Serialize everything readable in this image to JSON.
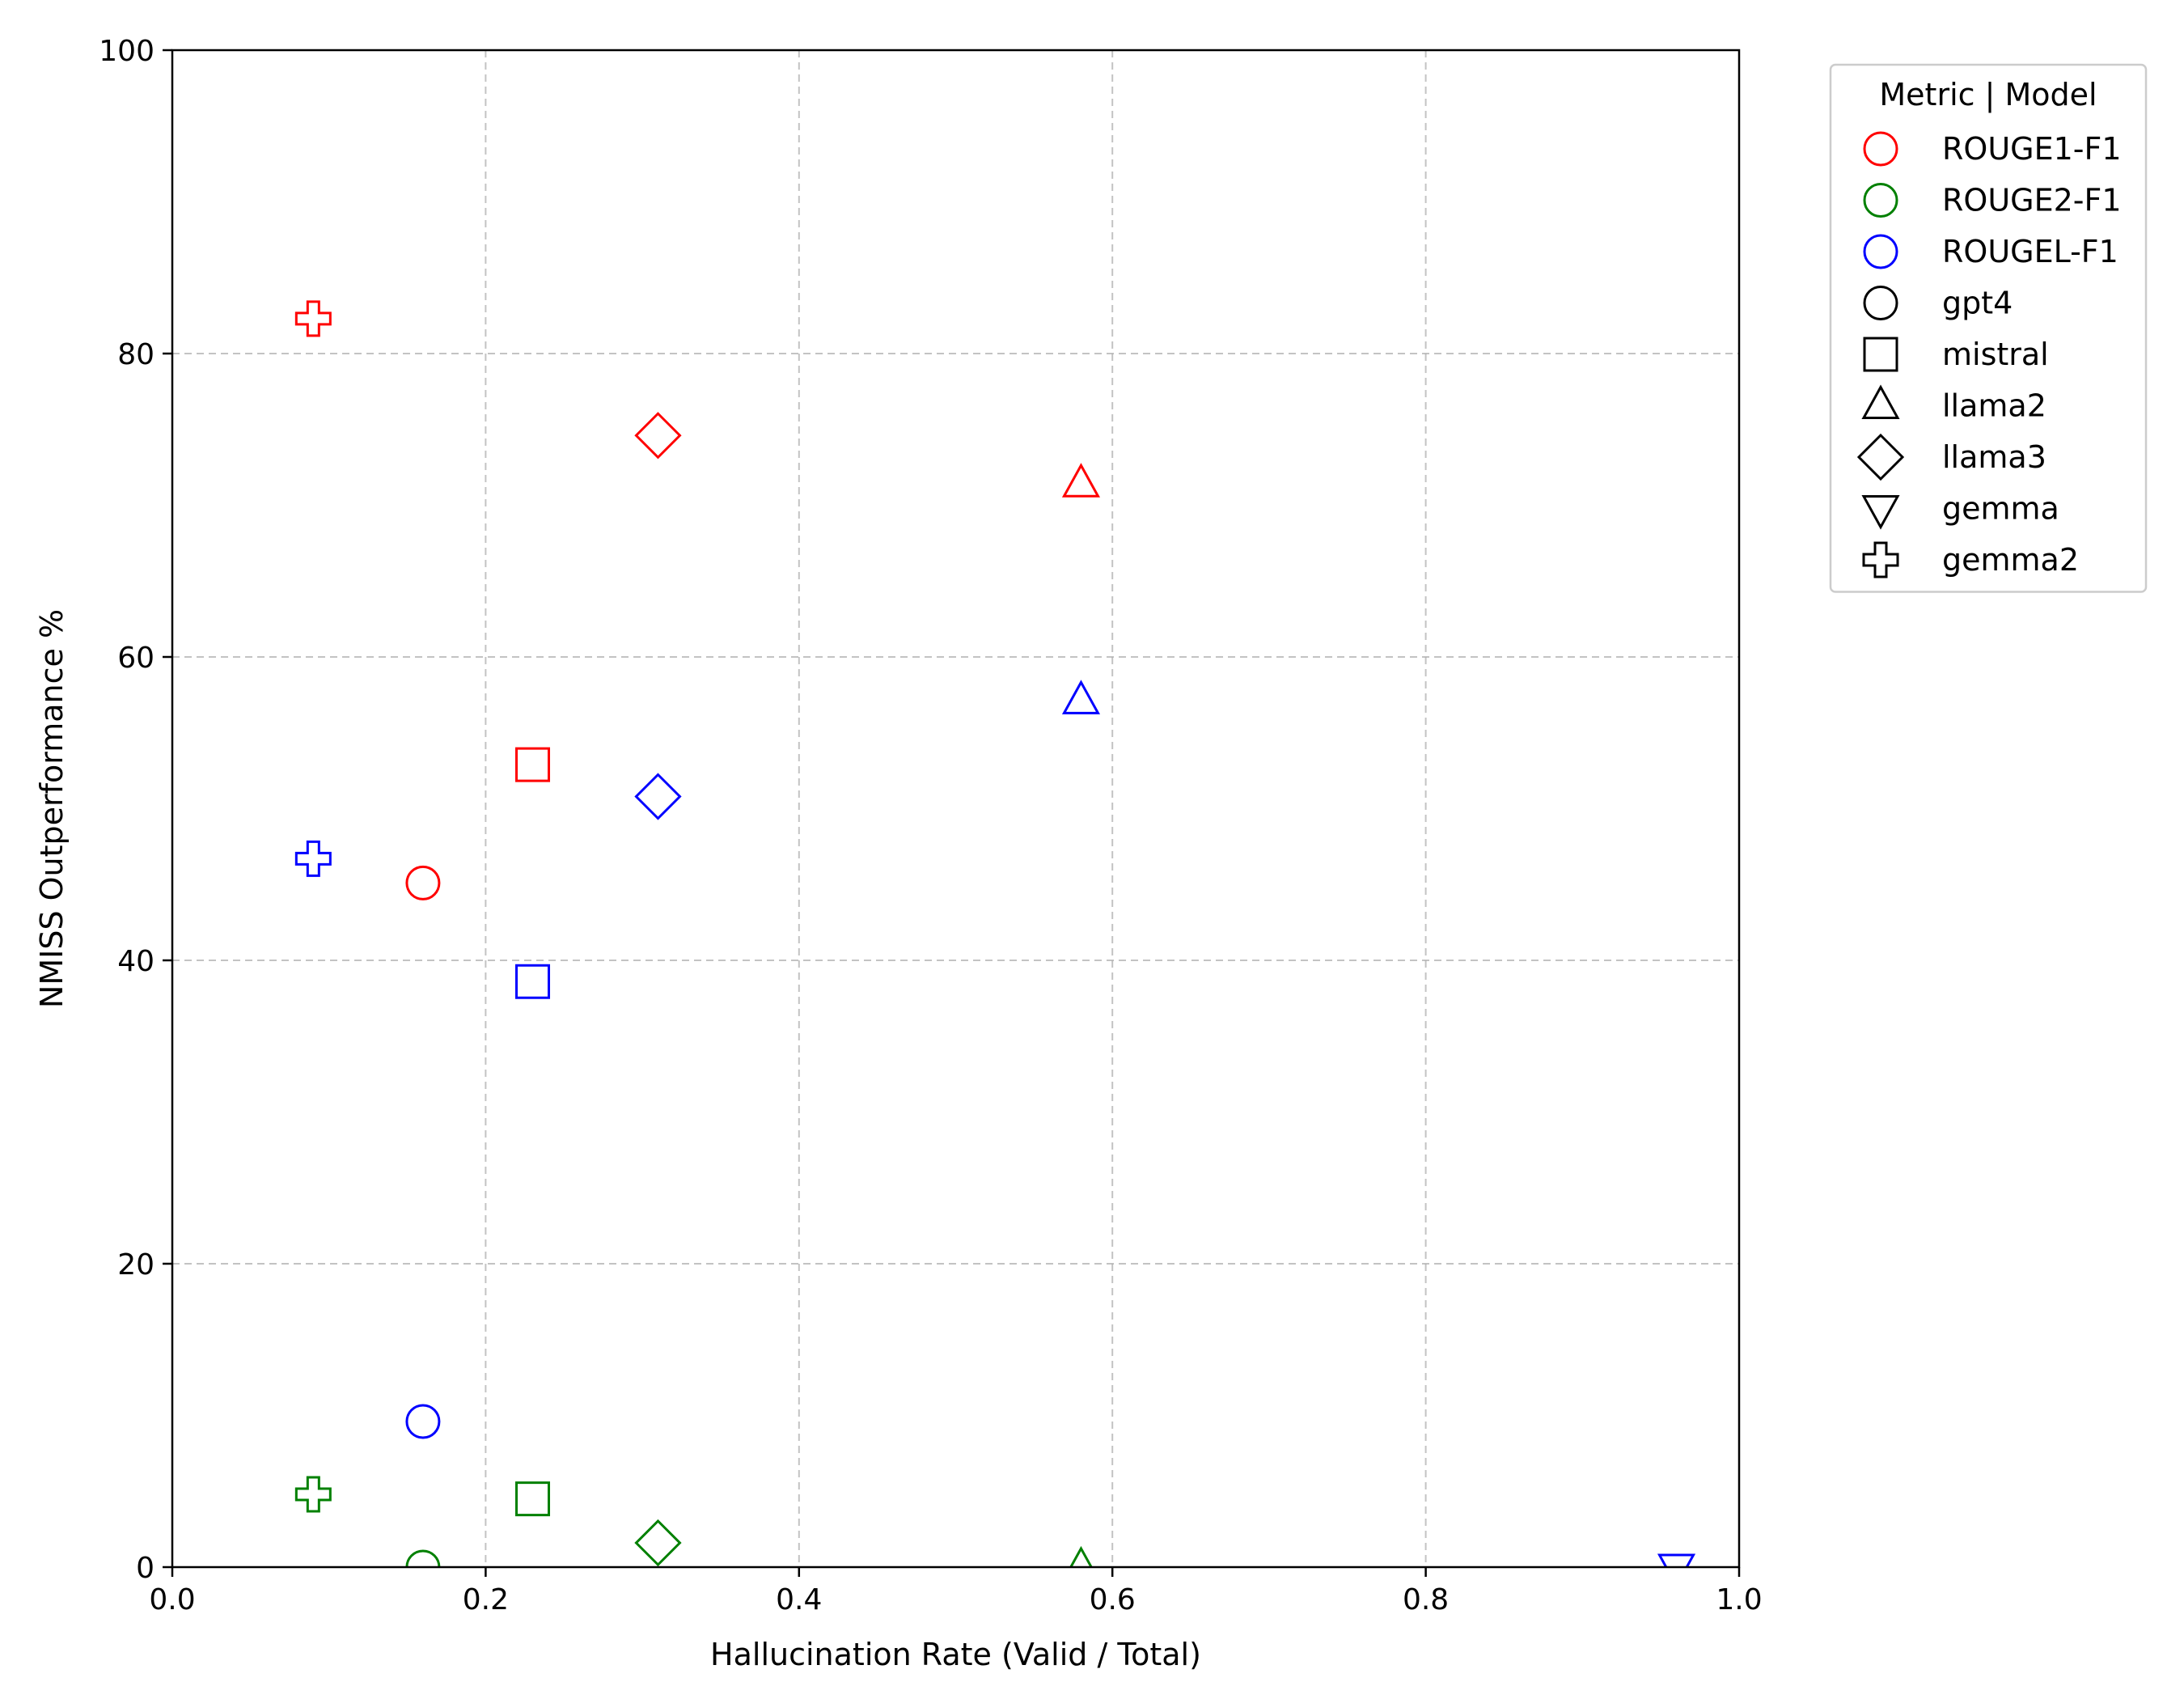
{
  "chart_data": {
    "type": "scatter",
    "title": "",
    "xlabel": "Hallucination Rate (Valid / Total)",
    "ylabel": "NMISS Outperformance %",
    "xlim": [
      0.0,
      1.0
    ],
    "ylim": [
      0,
      100
    ],
    "xticks": [
      "0.0",
      "0.2",
      "0.4",
      "0.6",
      "0.8",
      "1.0"
    ],
    "yticks": [
      "0",
      "20",
      "40",
      "60",
      "80",
      "100"
    ],
    "grid": true,
    "legend_position": "outside-top-right",
    "legend": {
      "title": "Metric | Model",
      "metrics": [
        {
          "name": "ROUGE1-F1",
          "color": "#ff0000"
        },
        {
          "name": "ROUGE2-F1",
          "color": "#008000"
        },
        {
          "name": "ROUGEL-F1",
          "color": "#0000ff"
        }
      ],
      "models": [
        {
          "name": "gpt4",
          "marker": "circle"
        },
        {
          "name": "mistral",
          "marker": "square"
        },
        {
          "name": "llama2",
          "marker": "triangle-up"
        },
        {
          "name": "llama3",
          "marker": "diamond"
        },
        {
          "name": "gemma",
          "marker": "triangle-down"
        },
        {
          "name": "gemma2",
          "marker": "plus"
        }
      ]
    },
    "points": [
      {
        "metric": "ROUGE1-F1",
        "model": "gemma2",
        "x": 0.09,
        "y": 82.3
      },
      {
        "metric": "ROUGE2-F1",
        "model": "gemma2",
        "x": 0.09,
        "y": 4.8
      },
      {
        "metric": "ROUGEL-F1",
        "model": "gemma2",
        "x": 0.09,
        "y": 46.7
      },
      {
        "metric": "ROUGE1-F1",
        "model": "gpt4",
        "x": 0.16,
        "y": 45.1
      },
      {
        "metric": "ROUGE2-F1",
        "model": "gpt4",
        "x": 0.16,
        "y": 0.0
      },
      {
        "metric": "ROUGEL-F1",
        "model": "gpt4",
        "x": 0.16,
        "y": 9.6
      },
      {
        "metric": "ROUGE1-F1",
        "model": "mistral",
        "x": 0.23,
        "y": 52.9
      },
      {
        "metric": "ROUGE2-F1",
        "model": "mistral",
        "x": 0.23,
        "y": 4.5
      },
      {
        "metric": "ROUGEL-F1",
        "model": "mistral",
        "x": 0.23,
        "y": 38.6
      },
      {
        "metric": "ROUGE1-F1",
        "model": "llama3",
        "x": 0.31,
        "y": 74.6
      },
      {
        "metric": "ROUGE2-F1",
        "model": "llama3",
        "x": 0.31,
        "y": 1.6
      },
      {
        "metric": "ROUGEL-F1",
        "model": "llama3",
        "x": 0.31,
        "y": 50.8
      },
      {
        "metric": "ROUGE1-F1",
        "model": "llama2",
        "x": 0.58,
        "y": 71.4
      },
      {
        "metric": "ROUGE2-F1",
        "model": "llama2",
        "x": 0.58,
        "y": 0.0
      },
      {
        "metric": "ROUGEL-F1",
        "model": "llama2",
        "x": 0.58,
        "y": 57.1
      },
      {
        "metric": "ROUGEL-F1",
        "model": "gemma",
        "x": 0.96,
        "y": 0.0
      }
    ]
  }
}
